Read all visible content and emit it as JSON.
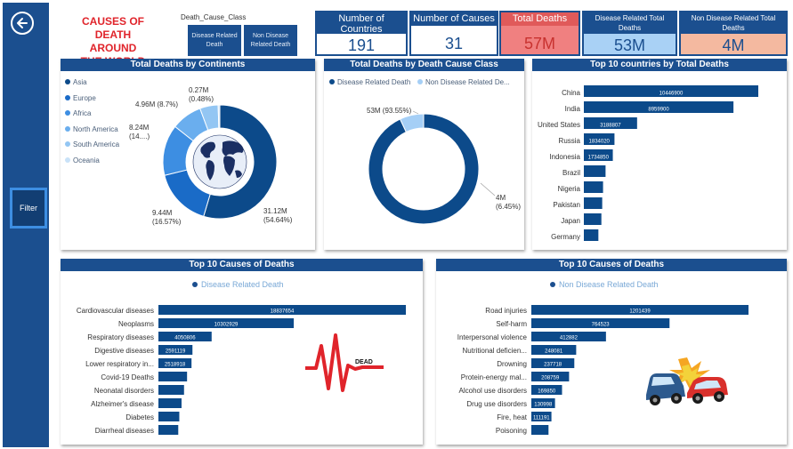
{
  "header": {
    "title_lines": [
      "CAUSES OF DEATH",
      "AROUND",
      "THE WORLD"
    ],
    "slicer": {
      "title": "Death_Cause_Class",
      "options": [
        "Disease Related Death",
        "Non Disease Related Death"
      ]
    }
  },
  "sidebar": {
    "filter_label": "Filter",
    "back_icon": "arrow-left-circle-icon"
  },
  "kpis": [
    {
      "label": "Number of Countries",
      "value": "191",
      "label_bg": "#1b4f8f",
      "value_bg": "#ffffff"
    },
    {
      "label": "Number of Causes",
      "value": "31",
      "label_bg": "#1b4f8f",
      "value_bg": "#ffffff"
    },
    {
      "label": "Total Deaths",
      "value": "57M",
      "label_bg": "#e05a5a",
      "value_bg": "#f08080"
    },
    {
      "label": "Disease Related Total Deaths",
      "value": "53M",
      "label_bg": "#1b4f8f",
      "value_bg": "#a9d1f5"
    },
    {
      "label": "Non Disease Related Total Deaths",
      "value": "4M",
      "label_bg": "#1b4f8f",
      "value_bg": "#f4b9a0"
    }
  ],
  "colors": {
    "primary": "#1b4f8f",
    "dark_blue": "#0c4a8a",
    "mid_blue": "#1a6bc7",
    "light_blue": "#4a9be8",
    "pale_blue": "#a5cff6",
    "red": "#e0242b"
  },
  "continents": {
    "title": "Total Deaths by Continents",
    "chart_data": {
      "type": "pie",
      "categories": [
        "Asia",
        "Europe",
        "Africa",
        "North America",
        "South America",
        "Oceania"
      ],
      "colors": [
        "#0c4a8a",
        "#1a6bc7",
        "#3d8ee2",
        "#6aaeee",
        "#93c6f3",
        "#c9e2f8"
      ],
      "values": [
        31.12,
        9.44,
        8.24,
        4.96,
        2.96,
        0.27
      ],
      "data_labels": [
        "31.12M (54.64%)",
        "9.44M (16.57%)",
        "8.24M (14....)",
        "4.96M (8.7%)",
        "",
        "0.27M (0.48%)"
      ]
    }
  },
  "death_class": {
    "title": "Total Deaths by Death Cause Class",
    "chart_data": {
      "type": "pie",
      "categories": [
        "Disease Related Death",
        "Non Disease Related De..."
      ],
      "colors": [
        "#0c4a8a",
        "#a5cff6"
      ],
      "values": [
        53,
        4
      ],
      "data_labels": [
        "53M (93.55%)",
        "4M (6.45%)"
      ]
    }
  },
  "top_countries": {
    "title": "Top 10 countries by Total Deaths",
    "chart_data": {
      "type": "bar",
      "orientation": "horizontal",
      "categories": [
        "China",
        "India",
        "United States",
        "Russia",
        "Indonesia",
        "Brazil",
        "Nigeria",
        "Pakistan",
        "Japan",
        "Germany"
      ],
      "values": [
        10446900,
        8959900,
        3188807,
        1834020,
        1734850,
        1300000,
        1150000,
        1100000,
        1050000,
        870000
      ],
      "data_labels": [
        "10446900",
        "8959900",
        "3188807",
        "1834020",
        "1734850",
        "",
        "",
        "",
        "",
        ""
      ]
    }
  },
  "top_disease": {
    "title": "Top 10 Causes of Deaths",
    "legend": "Disease Related Death",
    "legend_color": "#1b4f8f",
    "chart_data": {
      "type": "bar",
      "orientation": "horizontal",
      "categories": [
        "Cardiovascular diseases",
        "Neoplasms",
        "Respiratory diseases",
        "Digestive diseases",
        "Lower respiratory in...",
        "Covid-19 Deaths",
        "Neonatal disorders",
        "Alzheimer's disease",
        "Diabetes",
        "Diarrheal diseases"
      ],
      "values": [
        18837654,
        10302929,
        4050806,
        2591119,
        2518918,
        2180000,
        1950000,
        1760000,
        1590000,
        1510000
      ],
      "data_labels": [
        "18837654",
        "10302929",
        "4050806",
        "2591119",
        "2518918",
        "",
        "",
        "",
        "",
        ""
      ]
    }
  },
  "top_non_disease": {
    "title": "Top 10 Causes of Deaths",
    "legend": "Non Disease Related Death",
    "legend_color": "#1b4f8f",
    "chart_data": {
      "type": "bar",
      "orientation": "horizontal",
      "categories": [
        "Road injuries",
        "Self-harm",
        "Interpersonal violence",
        "Nutritional deficien...",
        "Drowning",
        "Protein-energy mal...",
        "Alcohol use disorders",
        "Drug use disorders",
        "Fire, heat",
        "Poisoning"
      ],
      "values": [
        1201439,
        764523,
        412882,
        248081,
        237718,
        208759,
        169850,
        130998,
        111191,
        95000
      ],
      "data_labels": [
        "1201439",
        "764523",
        "412882",
        "248081",
        "237718",
        "208759",
        "169850",
        "130998",
        "111191",
        ""
      ]
    }
  },
  "dead_icon_text": "DEAD"
}
